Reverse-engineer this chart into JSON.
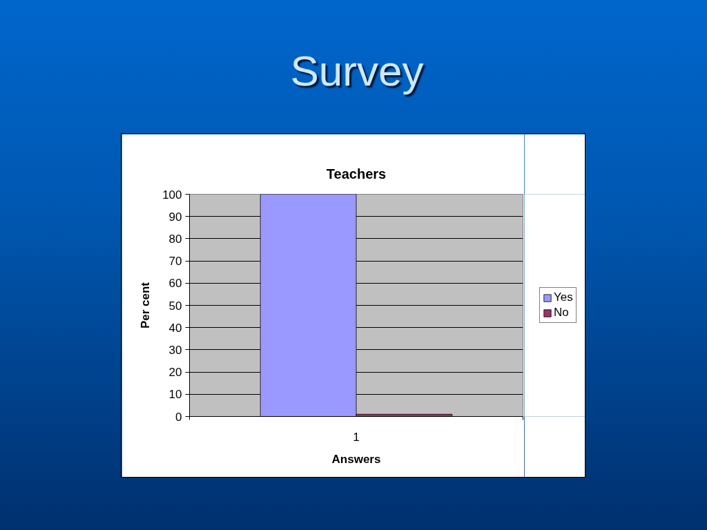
{
  "chart_data": {
    "type": "bar",
    "title": "Survey",
    "subtitle": "Teachers",
    "xlabel": "Answers",
    "ylabel": "Per cent",
    "categories": [
      "1"
    ],
    "series": [
      {
        "name": "Yes",
        "color": "#9999ff",
        "values": [
          100
        ]
      },
      {
        "name": "No",
        "color": "#993366",
        "values": [
          1
        ]
      }
    ],
    "ylim": [
      0,
      100
    ],
    "yticks": [
      0,
      10,
      20,
      30,
      40,
      50,
      60,
      70,
      80,
      90,
      100
    ],
    "grid": "y",
    "legend": "right"
  }
}
